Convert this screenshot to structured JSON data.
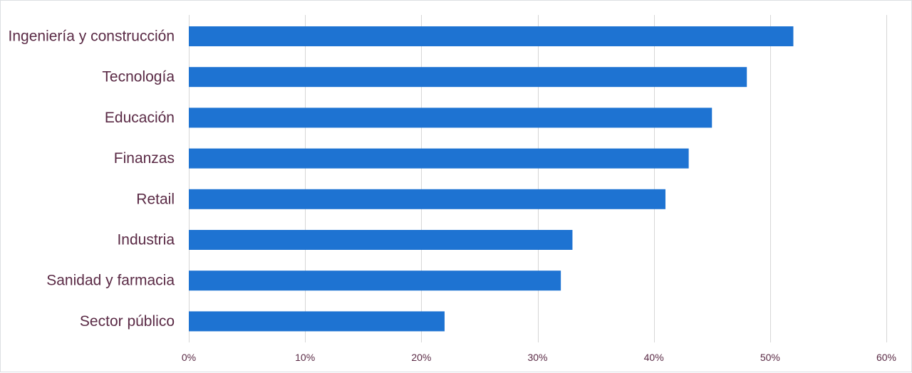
{
  "chart_data": {
    "type": "bar",
    "orientation": "horizontal",
    "categories": [
      "Ingeniería y construcción",
      "Tecnología",
      "Educación",
      "Finanzas",
      "Retail",
      "Industria",
      "Sanidad y farmacia",
      "Sector público"
    ],
    "values": [
      52,
      48,
      45,
      43,
      41,
      33,
      32,
      22
    ],
    "value_unit": "%",
    "xlim": [
      0,
      60
    ],
    "x_ticks": [
      0,
      10,
      20,
      30,
      40,
      50,
      60
    ],
    "x_tick_labels": [
      "0%",
      "10%",
      "20%",
      "30%",
      "40%",
      "50%",
      "60%"
    ],
    "title": "",
    "xlabel": "",
    "ylabel": "",
    "grid": "vertical",
    "legend": "none",
    "colors": {
      "bar": "#1e73d2",
      "label": "#5a2a45",
      "grid": "#d6d6d6"
    }
  }
}
